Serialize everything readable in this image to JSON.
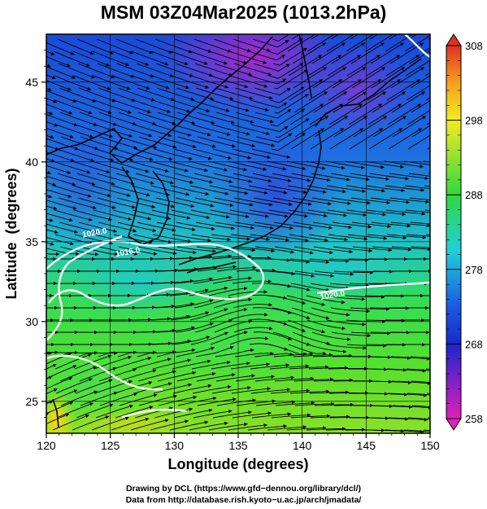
{
  "title": "MSM 03Z04Mar2025 (1013.2hPa)",
  "map": {
    "x_axis": {
      "label": "Longitude (degrees)",
      "min": 120,
      "max": 150,
      "ticks": [
        "120",
        "125",
        "130",
        "135",
        "140",
        "145",
        "150"
      ]
    },
    "y_axis": {
      "label": "Latitude  (degrees)",
      "min": 23,
      "max": 48,
      "ticks": [
        "25",
        "30",
        "35",
        "40",
        "45"
      ]
    },
    "contour_labels": [
      {
        "text": "1020.0",
        "lon": 123.8,
        "lat": 35.4
      },
      {
        "text": "1016.0",
        "lon": 126.4,
        "lat": 34.2
      },
      {
        "text": "1020.0",
        "lon": 142.4,
        "lat": 31.5
      }
    ],
    "colorbar": {
      "min": 258,
      "max": 308,
      "labels": [
        "308",
        "298",
        "288",
        "278",
        "268",
        "258"
      ]
    },
    "field_colors": {
      "cold": "#b01ad0",
      "cool": "#1838d8",
      "mid": "#1ec8c0",
      "warm": "#3ee03a",
      "hot": "#f2e020"
    }
  },
  "footer": {
    "line1": "Drawing by DCL (https://www.gfd−dennou.org/library/dcl/)",
    "line2": "Data from http://database.rish.kyoto−u.ac.jp/arch/jmadata/"
  }
}
